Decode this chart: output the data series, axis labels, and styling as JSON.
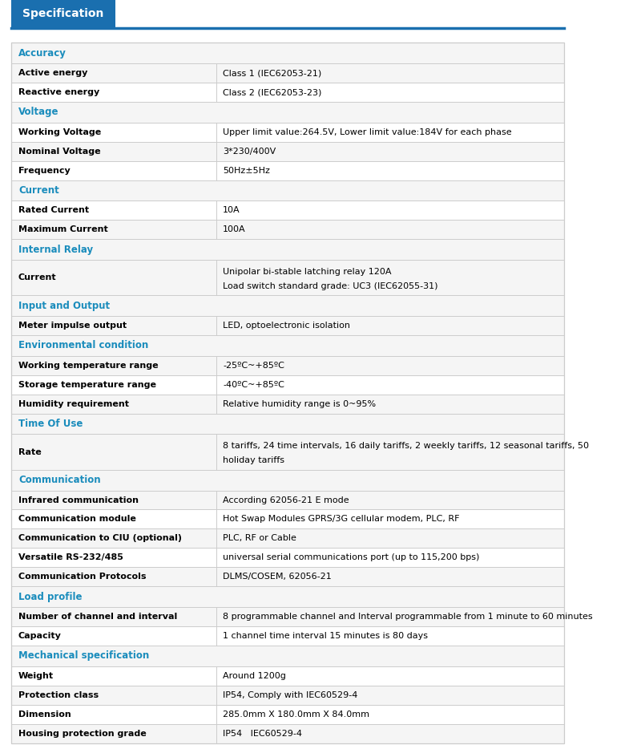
{
  "title_tab": "Specification",
  "title_tab_bg": "#1a6faf",
  "title_tab_text_color": "#ffffff",
  "header_line_color": "#1a6faf",
  "bg_color": "#ffffff",
  "section_text_color": "#1a8cbc",
  "row_label_color": "#000000",
  "row_value_color": "#000000",
  "row_bg_white": "#ffffff",
  "row_bg_gray": "#f5f5f5",
  "border_color": "#cccccc",
  "col_split": 0.37,
  "rows": [
    {
      "type": "section",
      "label": "Accuracy"
    },
    {
      "type": "data",
      "label": "Active energy",
      "value": "Class 1 (IEC62053-21)"
    },
    {
      "type": "data",
      "label": "Reactive energy",
      "value": "Class 2 (IEC62053-23)"
    },
    {
      "type": "section",
      "label": "Voltage"
    },
    {
      "type": "data",
      "label": "Working Voltage",
      "value": "Upper limit value:264.5V, Lower limit value:184V for each phase"
    },
    {
      "type": "data",
      "label": "Nominal Voltage",
      "value": "3*230/400V"
    },
    {
      "type": "data",
      "label": "Frequency",
      "value": "50Hz±5Hz"
    },
    {
      "type": "section",
      "label": "Current"
    },
    {
      "type": "data",
      "label": "Rated Current",
      "value": "10A"
    },
    {
      "type": "data",
      "label": "Maximum Current",
      "value": "100A"
    },
    {
      "type": "section",
      "label": "Internal Relay"
    },
    {
      "type": "data_multi",
      "label": "Current",
      "value": [
        "Unipolar bi-stable latching relay 120A",
        "Load switch standard grade: UC3 (IEC62055-31)"
      ]
    },
    {
      "type": "section",
      "label": "Input and Output"
    },
    {
      "type": "data",
      "label": "Meter impulse output",
      "value": "LED, optoelectronic isolation"
    },
    {
      "type": "section",
      "label": "Environmental condition"
    },
    {
      "type": "data",
      "label": "Working temperature range",
      "value": "-25ºC~+85ºC"
    },
    {
      "type": "data",
      "label": "Storage temperature range",
      "value": "-40ºC~+85ºC"
    },
    {
      "type": "data",
      "label": "Humidity requirement",
      "value": "Relative humidity range is 0~95%"
    },
    {
      "type": "section",
      "label": "Time Of Use"
    },
    {
      "type": "data_multi",
      "label": "Rate",
      "value": [
        "8 tariffs, 24 time intervals, 16 daily tariffs, 2 weekly tariffs, 12 seasonal tariffs, 50",
        "holiday tariffs"
      ]
    },
    {
      "type": "section",
      "label": "Communication"
    },
    {
      "type": "data",
      "label": "Infrared communication",
      "value": "According 62056-21 E mode"
    },
    {
      "type": "data",
      "label": "Communication module",
      "value": "Hot Swap Modules GPRS/3G cellular modem, PLC, RF"
    },
    {
      "type": "data",
      "label": "Communication to CIU (optional)",
      "value": "PLC, RF or Cable"
    },
    {
      "type": "data",
      "label": "Versatile RS-232/485",
      "value": "universal serial communications port (up to 115,200 bps)"
    },
    {
      "type": "data",
      "label": "Communication Protocols",
      "value": "DLMS/COSEM, 62056-21"
    },
    {
      "type": "section",
      "label": "Load profile"
    },
    {
      "type": "data",
      "label": "Number of channel and interval",
      "value": "8 programmable channel and Interval programmable from 1 minute to 60 minutes"
    },
    {
      "type": "data",
      "label": "Capacity",
      "value": "1 channel time interval 15 minutes is 80 days"
    },
    {
      "type": "section",
      "label": "Mechanical specification"
    },
    {
      "type": "data",
      "label": "Weight",
      "value": "Around 1200g"
    },
    {
      "type": "data",
      "label": "Protection class",
      "value": "IP54, Comply with IEC60529-4"
    },
    {
      "type": "data",
      "label": "Dimension",
      "value": "285.0mm X 180.0mm X 84.0mm"
    },
    {
      "type": "data",
      "label": "Housing protection grade",
      "value": "IP54   IEC60529-4"
    }
  ]
}
